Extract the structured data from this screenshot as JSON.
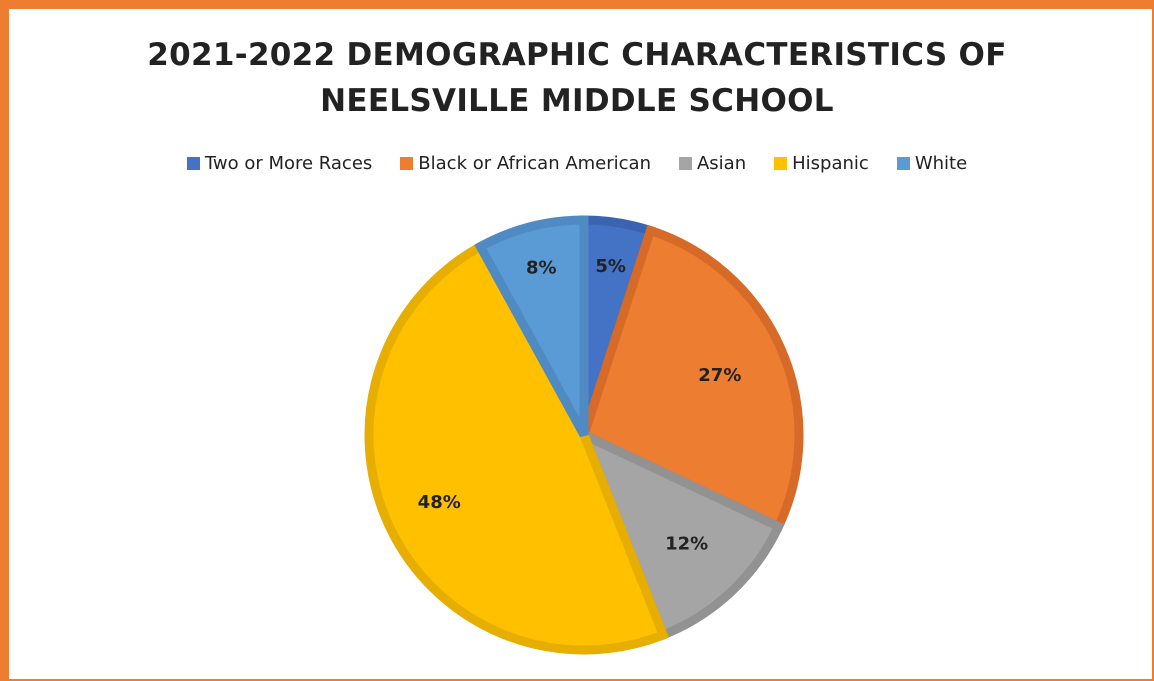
{
  "chart_data": {
    "type": "pie",
    "title_lines": [
      "2021-2022 DEMOGRAPHIC CHARACTERISTICS OF",
      "NEELSVILLE MIDDLE SCHOOL"
    ],
    "legend_position": "top",
    "slices": [
      {
        "name": "Two or More Races",
        "value": 5,
        "label": "5%",
        "color": "#4472C4",
        "stroke": "#3A64B0"
      },
      {
        "name": "Black or African American",
        "value": 27,
        "label": "27%",
        "color": "#ED7D31",
        "stroke": "#D76A27"
      },
      {
        "name": "Asian",
        "value": 12,
        "label": "12%",
        "color": "#A5A5A5",
        "stroke": "#929292"
      },
      {
        "name": "Hispanic",
        "value": 48,
        "label": "48%",
        "color": "#FFC000",
        "stroke": "#E6AE00"
      },
      {
        "name": "White",
        "value": 8,
        "label": "8%",
        "color": "#5B9BD5",
        "stroke": "#4F8AC2"
      }
    ]
  }
}
